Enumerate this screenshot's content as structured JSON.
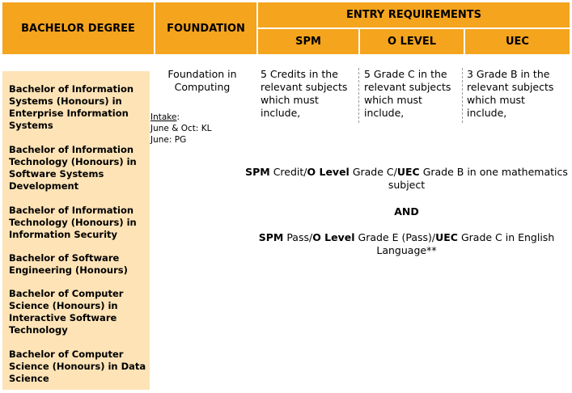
{
  "header": {
    "bachelor_degree": "BACHELOR DEGREE",
    "foundation": "FOUNDATION",
    "entry_requirements": "ENTRY REQUIREMENTS",
    "spm": "SPM",
    "o_level": "O LEVEL",
    "uec": "UEC"
  },
  "degrees": [
    "Bachelor of Information Systems (Honours) in Enterprise Information Systems",
    "Bachelor of Information Technology (Honours) in Software Systems Development",
    "Bachelor of Information Technology (Honours) in Information Security",
    "Bachelor of Software Engineering (Honours)",
    "Bachelor of Computer Science (Honours) in Interactive Software Technology",
    "Bachelor of Computer Science (Honours) in Data Science"
  ],
  "foundation": {
    "program": "Foundation in Computing",
    "intake_label": "Intake",
    "intake_colon": ":",
    "intake_kl": "June & Oct: KL",
    "intake_pg": "June: PG"
  },
  "requirements": {
    "spm": "5 Credits in the relevant subjects which must include,",
    "o_level": "5 Grade C in the relevant subjects which must include,",
    "uec": "3 Grade B in the relevant subjects which must include,"
  },
  "common": {
    "math": {
      "spm": "SPM",
      "part1": " Credit/",
      "olevel": "O Level",
      "part2": " Grade C/",
      "uec": "UEC",
      "part3": " Grade B in one mathematics subject"
    },
    "and": "AND",
    "english": {
      "spm": "SPM",
      "part1": " Pass/",
      "olevel": "O Level",
      "part2": " Grade E (Pass)/",
      "uec": "UEC",
      "part3": " Grade C  in English Language**"
    }
  },
  "colors": {
    "header_bg": "#f5a41e",
    "degree_bg": "#fde3b6"
  }
}
